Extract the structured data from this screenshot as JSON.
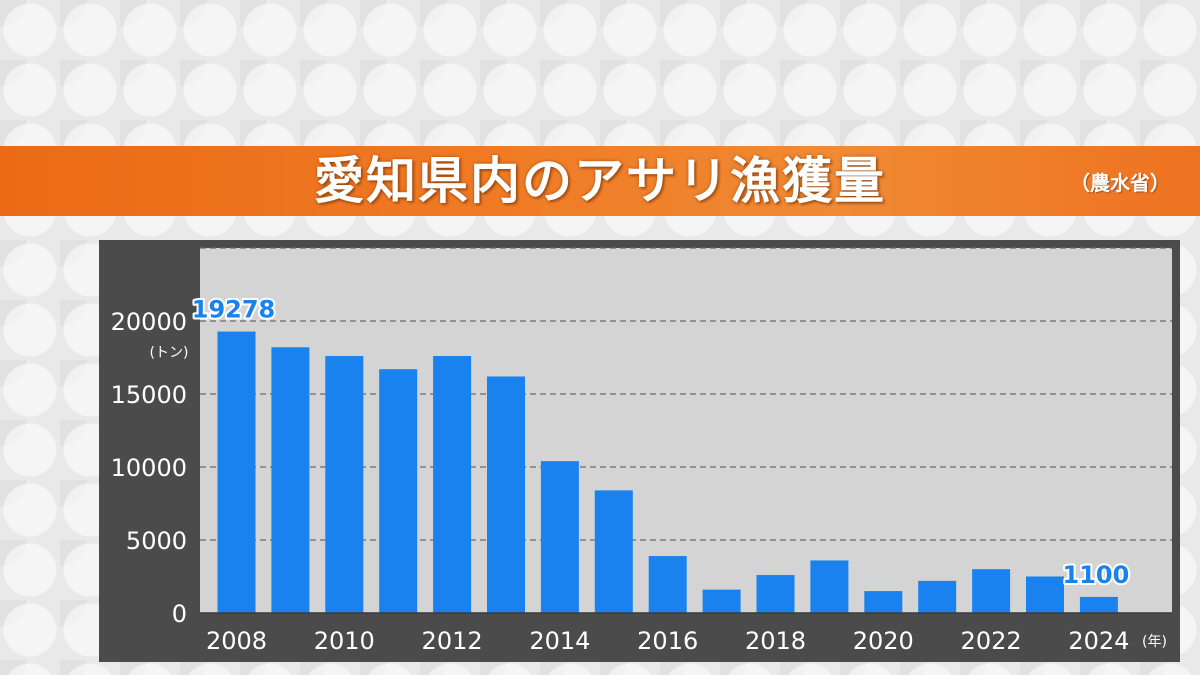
{
  "banner": {
    "title": "愛知県内のアサリ漁獲量",
    "source": "（農水省）"
  },
  "chart_data": {
    "type": "bar",
    "title": "愛知県内のアサリ漁獲量",
    "source": "（農水省）",
    "ylabel": "(トン)",
    "xlabel": "(年)",
    "ylim": [
      0,
      25000
    ],
    "yticks": [
      0,
      5000,
      10000,
      15000,
      20000
    ],
    "grid": true,
    "bar_color": "#1a82ee",
    "categories": [
      "2008",
      "2009",
      "2010",
      "2011",
      "2012",
      "2013",
      "2014",
      "2015",
      "2016",
      "2017",
      "2018",
      "2019",
      "2020",
      "2021",
      "2022",
      "2023",
      "2024"
    ],
    "x_tick_labels": [
      "2008",
      "2010",
      "2012",
      "2014",
      "2016",
      "2018",
      "2020",
      "2022",
      "2024"
    ],
    "values": [
      19278,
      18200,
      17600,
      16700,
      17600,
      16200,
      10400,
      8400,
      3900,
      1600,
      2600,
      3600,
      1500,
      2200,
      3000,
      2500,
      1100
    ],
    "data_labels": [
      {
        "category": "2008",
        "text": "19278"
      },
      {
        "category": "2024",
        "text": "1100"
      }
    ]
  }
}
